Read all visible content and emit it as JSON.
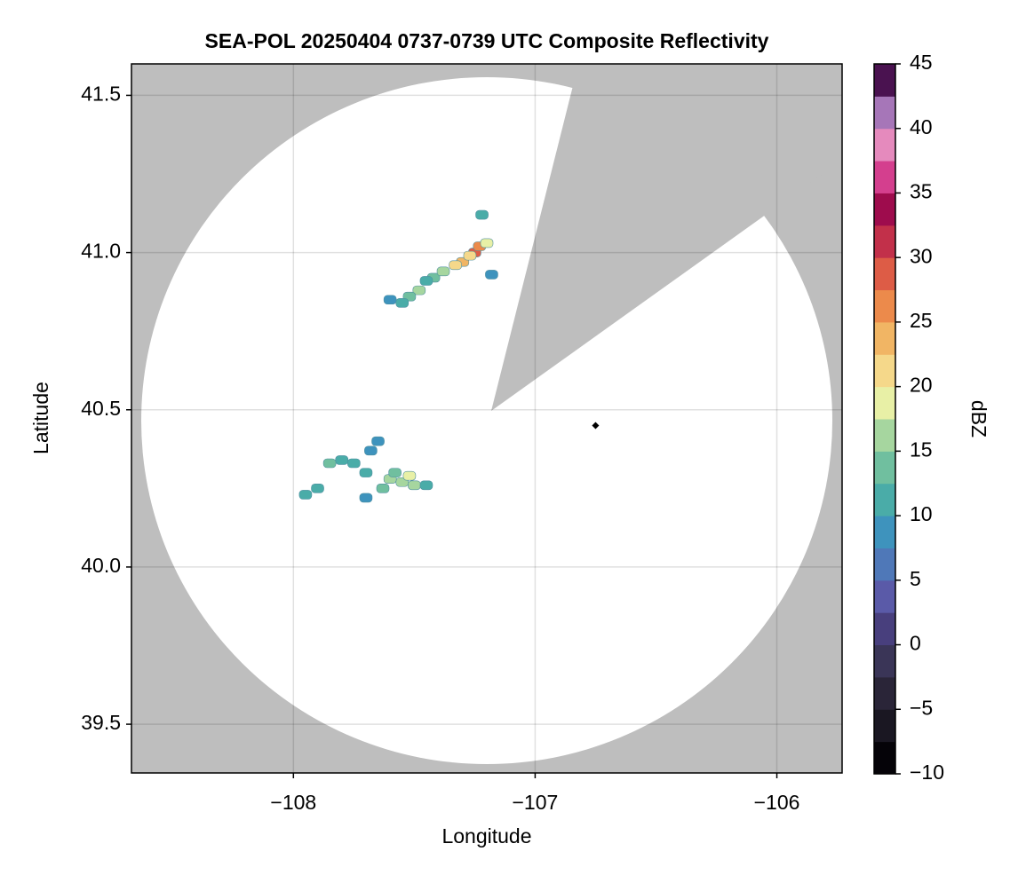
{
  "chart_data": {
    "type": "map",
    "title": "SEA-POL 20250404 0737-0739 UTC Composite Reflectivity",
    "xlabel": "Longitude",
    "ylabel": "Latitude",
    "xlim": [
      -108.67,
      -105.73
    ],
    "ylim": [
      39.345,
      41.6
    ],
    "xticks": [
      {
        "value": -108,
        "label": "−108"
      },
      {
        "value": -107,
        "label": "−107"
      },
      {
        "value": -106,
        "label": "−106"
      }
    ],
    "yticks": [
      39.5,
      {
        "value": 40,
        "label": "40.0"
      },
      40.5,
      {
        "value": 41,
        "label": "41.0"
      },
      41.5
    ],
    "grid": true,
    "colorbar": {
      "label": "dBZ",
      "lim": [
        -10,
        45
      ],
      "ticks": [
        {
          "value": -10,
          "label": "−10"
        },
        {
          "value": -5,
          "label": "−5"
        },
        0,
        5,
        10,
        15,
        20,
        25,
        30,
        35,
        40,
        45
      ],
      "colors": [
        "#050308",
        "#1a1722",
        "#2a2538",
        "#3a3557",
        "#483f7d",
        "#5a5aa8",
        "#4f78b8",
        "#3e93bd",
        "#4aaca8",
        "#70bf9f",
        "#a6d69f",
        "#e8f0a6",
        "#f5d88a",
        "#f1b564",
        "#ec8a4b",
        "#dd5c46",
        "#c2304a",
        "#9e0c4d",
        "#d43f8e",
        "#e58abd",
        "#a676b8",
        "#4a1250"
      ]
    },
    "echoes": {
      "lon": [
        -107.55,
        -107.5,
        -107.6,
        -107.52,
        -107.45,
        -107.63,
        -107.58,
        -107.7,
        -107.75,
        -107.8,
        -107.85,
        -107.68,
        -107.9,
        -107.95,
        -107.7,
        -107.65,
        -107.25,
        -107.23,
        -107.3,
        -107.33,
        -107.27,
        -107.2,
        -107.42,
        -107.48,
        -107.52,
        -107.55,
        -107.6,
        -107.45,
        -107.38,
        -107.18,
        -107.22
      ],
      "lat": [
        40.27,
        40.26,
        40.28,
        40.29,
        40.26,
        40.25,
        40.3,
        40.3,
        40.33,
        40.34,
        40.33,
        40.37,
        40.25,
        40.23,
        40.22,
        40.4,
        41.0,
        41.02,
        40.97,
        40.96,
        40.99,
        41.03,
        40.92,
        40.88,
        40.86,
        40.84,
        40.85,
        40.91,
        40.94,
        40.93,
        41.12
      ],
      "values": [
        17,
        16,
        15,
        18,
        12,
        13,
        14,
        11,
        12,
        10,
        13,
        9,
        10,
        12,
        8,
        8,
        28,
        25,
        24,
        20,
        22,
        18,
        14,
        16,
        13,
        11,
        9,
        12,
        15,
        8,
        10
      ]
    },
    "marker": {
      "lon": -106.75,
      "lat": 40.45,
      "color": "#000000"
    }
  }
}
